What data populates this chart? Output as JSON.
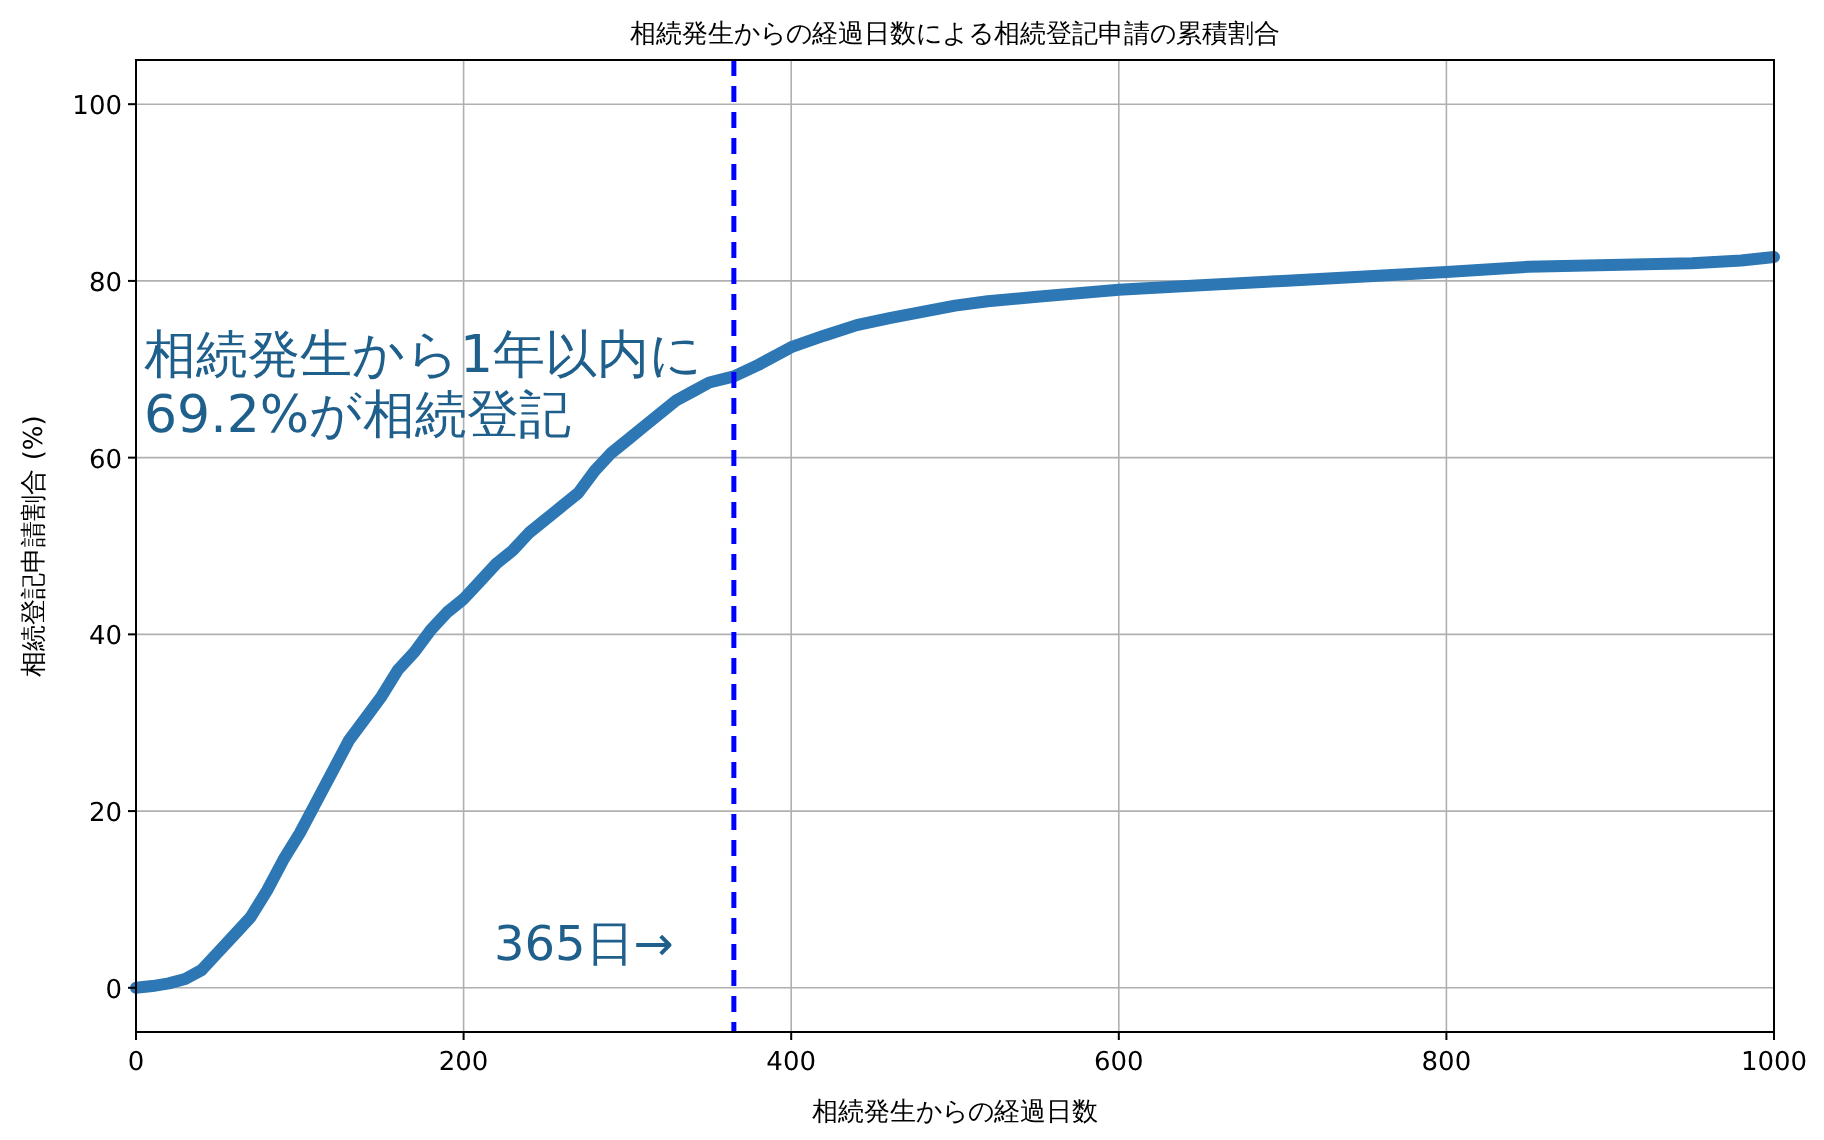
{
  "chart_data": {
    "type": "line",
    "title": "相続発生からの経過日数による相続登記申請の累積割合",
    "xlabel": "相続発生からの経過日数",
    "ylabel": "相続登記申請割合 (%)",
    "xlim": [
      0,
      1000
    ],
    "ylim": [
      -5,
      105
    ],
    "xticks": [
      0,
      200,
      400,
      600,
      800,
      1000
    ],
    "yticks": [
      0,
      20,
      40,
      60,
      80,
      100
    ],
    "grid": true,
    "line_style": "solid",
    "marker": "none",
    "ref_lines": [
      {
        "axis": "x",
        "value": 365,
        "color": "#0000ff",
        "line_style": "dashed"
      }
    ],
    "annotations": [
      "相続発生から1年以内に\n69.2%が相続登記",
      "365日→"
    ],
    "series": [
      {
        "color": "#2c77b4",
        "x": [
          0,
          10,
          20,
          30,
          40,
          50,
          60,
          70,
          80,
          90,
          100,
          110,
          120,
          130,
          140,
          150,
          160,
          170,
          180,
          190,
          200,
          210,
          220,
          230,
          240,
          250,
          260,
          270,
          280,
          290,
          300,
          310,
          320,
          330,
          340,
          350,
          365,
          380,
          400,
          420,
          440,
          460,
          480,
          500,
          520,
          550,
          600,
          650,
          700,
          750,
          800,
          850,
          900,
          950,
          980,
          1000
        ],
        "values": [
          0,
          0.2,
          0.5,
          1,
          2,
          4,
          6,
          8,
          11,
          14.5,
          17.5,
          21,
          24.5,
          28,
          30.5,
          33,
          36,
          38,
          40.5,
          42.5,
          44,
          46,
          48,
          49.5,
          51.5,
          53,
          54.5,
          56,
          58.5,
          60.5,
          62,
          63.5,
          65,
          66.5,
          67.5,
          68.5,
          69.2,
          70.5,
          72.5,
          73.8,
          75,
          75.8,
          76.5,
          77.2,
          77.7,
          78.2,
          79,
          79.5,
          80,
          80.5,
          81,
          81.6,
          81.8,
          82,
          82.3,
          82.7
        ]
      }
    ]
  }
}
